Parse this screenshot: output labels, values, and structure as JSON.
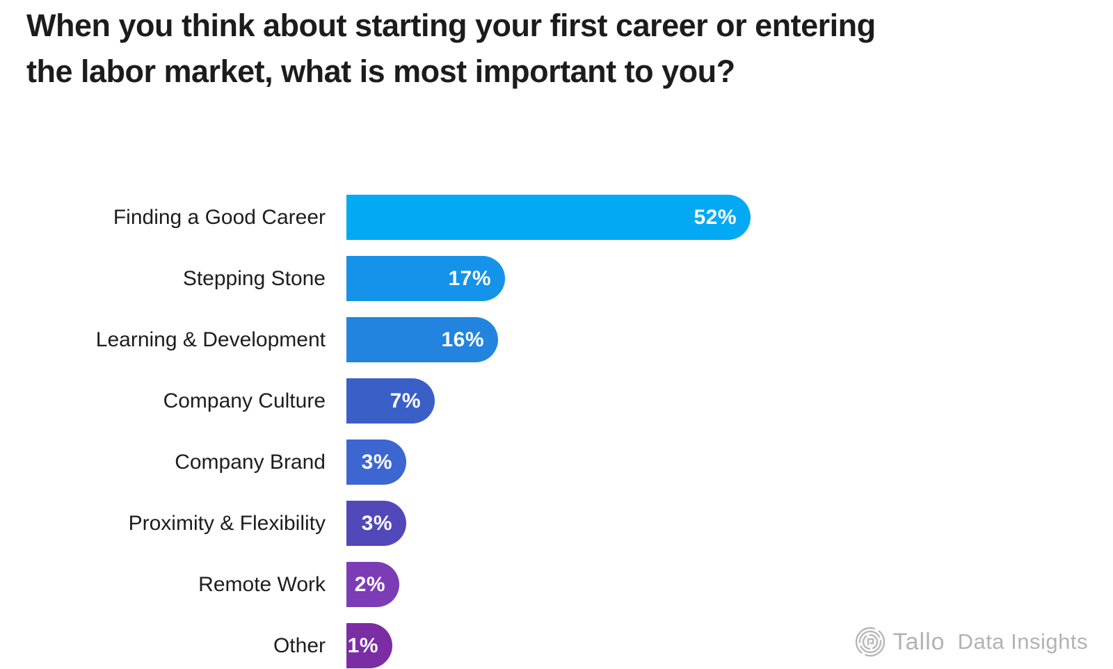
{
  "header": {
    "title_line1": "When you think about starting your first career or entering",
    "title_line2": "the labor market, what is most important to you?"
  },
  "chart_data": {
    "type": "bar",
    "orientation": "horizontal",
    "title": "When you think about starting your first career or entering the labor market, what is most important to you?",
    "xlabel": "",
    "ylabel": "",
    "axis_ticks": "none",
    "grid": false,
    "legend": false,
    "xlim": [
      0,
      55
    ],
    "categories": [
      "Finding a Good Career",
      "Stepping Stone",
      "Learning & Development",
      "Company Culture",
      "Company Brand",
      "Proximity & Flexibility",
      "Remote Work",
      "Other"
    ],
    "values": [
      52,
      17,
      16,
      7,
      3,
      3,
      2,
      1
    ],
    "value_labels": [
      "52%",
      "17%",
      "16%",
      "7%",
      "3%",
      "3%",
      "2%",
      "1%"
    ],
    "bar_colors": [
      "#04A9F4",
      "#1592EA",
      "#2284DF",
      "#3A60C8",
      "#3D66D0",
      "#5348B9",
      "#7C3CB6",
      "#7B2DA4"
    ],
    "value_label_color": "#ffffff",
    "category_label_color": "#1d1d1d"
  },
  "footer": {
    "brand": "Tallo",
    "brand_suffix": "Data Insights",
    "logo_icon": "tallo-fingerprint-rings-icon",
    "color": "#b2b2b2"
  },
  "colors": {
    "background": "#ffffff",
    "title_text": "#1c1c1c"
  }
}
